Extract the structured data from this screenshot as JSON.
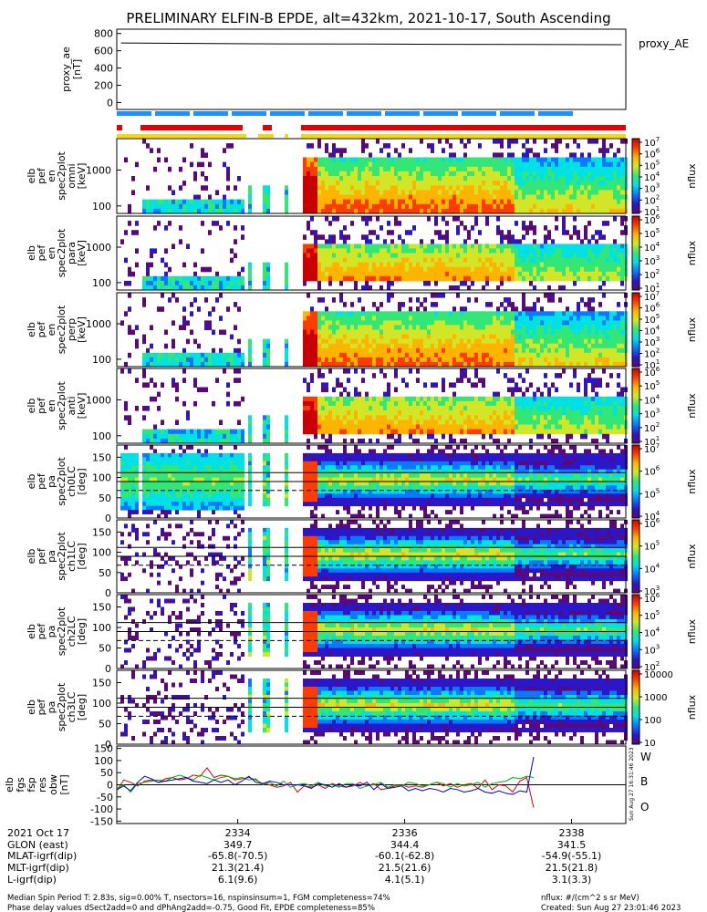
{
  "title": "PRELIMINARY ELFIN-B EPDE, alt=432km, 2021-10-17, South Ascending",
  "colors": {
    "colormap": [
      "#5a0a78",
      "#2b16c8",
      "#0a78ff",
      "#00e1e6",
      "#32e678",
      "#d2e628",
      "#ffb400",
      "#ff3c00",
      "#c80000"
    ],
    "bar_blue": "#1e90ff",
    "bar_red": "#e60000",
    "bar_yellow": "#ffd700",
    "fgs_red": "#e60000",
    "fgs_green": "#00b400",
    "fgs_blue": "#0000dc"
  },
  "chart_data": [
    {
      "type": "line",
      "panel": "proxy_ae",
      "ylabel": [
        "proxy_ae",
        "[nT]"
      ],
      "yticks": [
        "800",
        "600",
        "400",
        "200",
        "0"
      ],
      "ylim": [
        -80,
        850
      ],
      "legend": "proxy_AE",
      "series": [
        {
          "name": "proxy_AE",
          "x": [
            2332.6,
            2333.5,
            2334.5,
            2335.5,
            2336.5,
            2337.5,
            2338.6
          ],
          "values": [
            690,
            685,
            680,
            678,
            675,
            672,
            670
          ]
        }
      ]
    },
    {
      "type": "heatmap",
      "panel": "en_0",
      "ylabel": [
        "elb",
        "pef",
        "en",
        "spec2plot",
        "omni",
        "[keV]"
      ],
      "yscale": "log",
      "yticks": [
        "1000",
        "100"
      ],
      "ztick_labels": [
        "10",
        "10",
        "10",
        "10",
        "10",
        "10",
        "10"
      ],
      "ztick_exponents": [
        "7",
        "6",
        "5",
        "4",
        "3",
        "2",
        "1"
      ],
      "zlabel": "nflux"
    },
    {
      "type": "heatmap",
      "panel": "en_1",
      "ylabel": [
        "elb",
        "pef",
        "en",
        "spec2plot",
        "para",
        "[keV]"
      ],
      "yscale": "log",
      "yticks": [
        "1000",
        "100"
      ],
      "ztick_labels": [
        "10",
        "10",
        "10",
        "10",
        "10",
        "10"
      ],
      "ztick_exponents": [
        "6",
        "5",
        "4",
        "3",
        "2",
        "1"
      ],
      "zlabel": "nflux"
    },
    {
      "type": "heatmap",
      "panel": "en_2",
      "ylabel": [
        "elb",
        "pef",
        "en",
        "spec2plot",
        "perp",
        "[keV]"
      ],
      "yscale": "log",
      "yticks": [
        "1000",
        "100"
      ],
      "ztick_labels": [
        "10",
        "10",
        "10",
        "10",
        "10",
        "10",
        "10"
      ],
      "ztick_exponents": [
        "7",
        "6",
        "5",
        "4",
        "3",
        "2",
        "1"
      ],
      "zlabel": "nflux"
    },
    {
      "type": "heatmap",
      "panel": "en_3",
      "ylabel": [
        "elb",
        "pef",
        "en",
        "spec2plot",
        "anti",
        "[keV]"
      ],
      "yscale": "log",
      "yticks": [
        "1000",
        "100"
      ],
      "ztick_labels": [
        "10",
        "10",
        "10",
        "10",
        "10",
        "10"
      ],
      "ztick_exponents": [
        "6",
        "5",
        "4",
        "3",
        "2",
        "1"
      ],
      "zlabel": "nflux"
    },
    {
      "type": "heatmap",
      "panel": "pa_0",
      "ylabel": [
        "elb",
        "pef",
        "pa",
        "spec2plot",
        "ch0LC",
        "[deg]"
      ],
      "ylim": [
        0,
        180
      ],
      "yticks": [
        "150",
        "100",
        "50",
        "0"
      ],
      "ztick_labels": [
        "10",
        "10",
        "10",
        "10"
      ],
      "ztick_exponents": [
        "7",
        "6",
        "5",
        "4"
      ],
      "zlabel": "nflux"
    },
    {
      "type": "heatmap",
      "panel": "pa_1",
      "ylabel": [
        "elb",
        "pef",
        "pa",
        "spec2plot",
        "ch1LC",
        "[deg]"
      ],
      "ylim": [
        0,
        180
      ],
      "yticks": [
        "150",
        "100",
        "50",
        "0"
      ],
      "ztick_labels": [
        "10",
        "10",
        "10",
        "10"
      ],
      "ztick_exponents": [
        "6",
        "5",
        "4",
        "3"
      ],
      "zlabel": "nflux"
    },
    {
      "type": "heatmap",
      "panel": "pa_2",
      "ylabel": [
        "elb",
        "pef",
        "pa",
        "spec2plot",
        "ch2LC",
        "[deg]"
      ],
      "ylim": [
        0,
        180
      ],
      "yticks": [
        "150",
        "100",
        "50",
        "0"
      ],
      "ztick_labels": [
        "10",
        "10",
        "10",
        "10",
        "10"
      ],
      "ztick_exponents": [
        "6",
        "5",
        "4",
        "3",
        "2"
      ],
      "zlabel": "nflux"
    },
    {
      "type": "heatmap",
      "panel": "pa_3",
      "ylabel": [
        "elb",
        "pef",
        "pa",
        "spec2plot",
        "ch3LC",
        "[deg]"
      ],
      "ylim": [
        0,
        180
      ],
      "yticks": [
        "150",
        "100",
        "50",
        "0"
      ],
      "ztick_labels": [
        "10000",
        "1000",
        "100",
        "10"
      ],
      "ztick_exponents": [
        "",
        "",
        "",
        ""
      ],
      "zlabel": "nflux"
    },
    {
      "type": "line",
      "panel": "fgs",
      "ylabel": [
        "elb",
        "fgs",
        "fsp",
        "res",
        "obw",
        "[nT]"
      ],
      "ylim": [
        -160,
        160
      ],
      "yticks": [
        "150",
        "100",
        "50",
        "0",
        "-50",
        "-100",
        "-150"
      ],
      "legend": [
        "W",
        "B",
        "O"
      ],
      "x_range": [
        2332.55,
        2338.65
      ],
      "series": [
        {
          "name": "W",
          "color": "#e60000",
          "values": [
            -25,
            20,
            10,
            -5,
            15,
            20,
            10,
            25,
            30,
            20,
            25,
            40,
            35,
            70,
            30,
            40,
            35,
            20,
            25,
            30,
            20,
            5,
            0,
            -10,
            -5,
            10,
            -30,
            -5,
            -10,
            0,
            -15,
            5,
            -5,
            -10,
            -5,
            10,
            -5,
            5,
            -20,
            -15,
            -5,
            0,
            -10,
            -5,
            -10,
            0,
            10,
            -5,
            5,
            -10,
            0,
            5,
            -15,
            20,
            -20,
            0,
            -5,
            -30,
            15,
            30,
            -95
          ]
        },
        {
          "name": "B",
          "color": "#00b400",
          "values": [
            -15,
            0,
            -30,
            5,
            10,
            15,
            20,
            15,
            30,
            40,
            30,
            20,
            40,
            30,
            20,
            30,
            35,
            25,
            30,
            20,
            25,
            0,
            10,
            -5,
            15,
            -10,
            0,
            5,
            -5,
            10,
            -5,
            0,
            -10,
            5,
            5,
            -15,
            -5,
            0,
            10,
            -10,
            0,
            -5,
            10,
            5,
            -5,
            0,
            10,
            5,
            -10,
            5,
            -5,
            0,
            10,
            -10,
            5,
            10,
            15,
            30,
            25,
            35,
            30
          ]
        },
        {
          "name": "O",
          "color": "#0000dc",
          "values": [
            -20,
            -5,
            -25,
            10,
            35,
            25,
            10,
            15,
            20,
            25,
            30,
            15,
            10,
            5,
            20,
            10,
            20,
            0,
            15,
            35,
            10,
            5,
            15,
            10,
            0,
            0,
            0,
            -5,
            -15,
            5,
            0,
            -10,
            5,
            -10,
            0,
            -5,
            10,
            -20,
            5,
            -15,
            -10,
            -5,
            -25,
            -15,
            -25,
            -15,
            -20,
            -30,
            -15,
            -20,
            -30,
            -25,
            -15,
            -30,
            -35,
            -25,
            -35,
            -40,
            -25,
            -30,
            115
          ]
        }
      ]
    }
  ],
  "x_axis": {
    "ticks": [
      "2334",
      "2336",
      "2338"
    ],
    "tick_values": [
      2334,
      2336,
      2338
    ],
    "x_range": [
      2332.55,
      2338.65
    ],
    "row_labels": [
      "2021 Oct 17",
      "GLON (east)",
      "MLAT-igrf(dip)",
      "MLT-igrf(dip)",
      "L-igrf(dip)"
    ],
    "rows": [
      [
        "",
        "",
        ""
      ],
      [
        "349.7",
        "344.4",
        "341.5"
      ],
      [
        "-65.8(-70.5)",
        "-60.1(-62.8)",
        "-54.9(-55.1)"
      ],
      [
        "21.3(21.4)",
        "21.5(21.6)",
        "21.5(21.8)"
      ],
      [
        "6.1(9.6)",
        "4.1(5.1)",
        "3.1(3.3)"
      ]
    ]
  },
  "footer": {
    "left1": "Median Spin Period T: 2.83s, sig=0.00% T, nsectors=16, nspinsinsum=1, FGM completeness=74%",
    "left2": "Phase delay values dSect2add=0 and dPhAng2add=-0.75, Good Fit, EPDE completeness=85%",
    "right1": "nflux: #/(cm^2 s sr MeV)",
    "right2": "Created: Sun Aug 27 23:01:46 2023",
    "side": "Sun Aug 27 16:31:46 2023"
  }
}
